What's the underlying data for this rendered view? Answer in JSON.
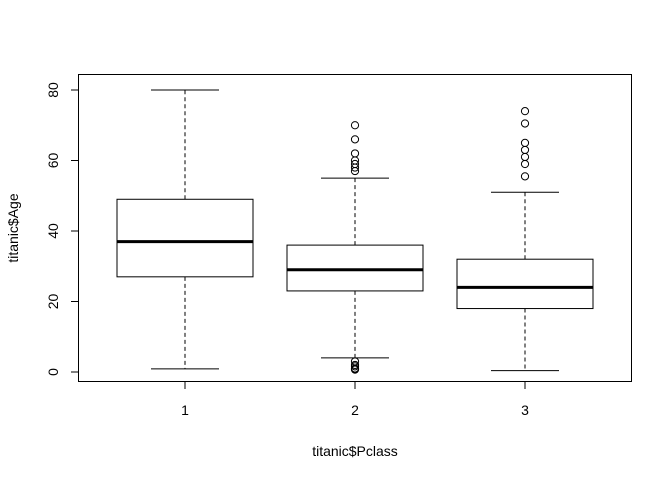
{
  "chart_data": {
    "type": "boxplot",
    "xlabel": "titanic$Pclass",
    "ylabel": "titanic$Age",
    "categories": [
      "1",
      "2",
      "3"
    ],
    "ylim": [
      -2.5,
      82.5
    ],
    "yticks": [
      0,
      20,
      40,
      60,
      80
    ],
    "grid": false,
    "legend": "none",
    "boxes": [
      {
        "category": "1",
        "whisker_low": 0.9,
        "q1": 27,
        "median": 37,
        "q3": 49,
        "whisker_high": 80,
        "outliers": []
      },
      {
        "category": "2",
        "whisker_low": 4,
        "q1": 23,
        "median": 29,
        "q3": 36,
        "whisker_high": 55,
        "outliers": [
          57,
          58,
          59,
          60,
          62,
          66,
          70,
          3,
          2,
          1.6,
          1,
          0.83,
          0.67
        ]
      },
      {
        "category": "3",
        "whisker_low": 0.4,
        "q1": 18,
        "median": 24,
        "q3": 32,
        "whisker_high": 51,
        "outliers": [
          55.5,
          59,
          61,
          63,
          65,
          70.5,
          74
        ]
      }
    ]
  }
}
